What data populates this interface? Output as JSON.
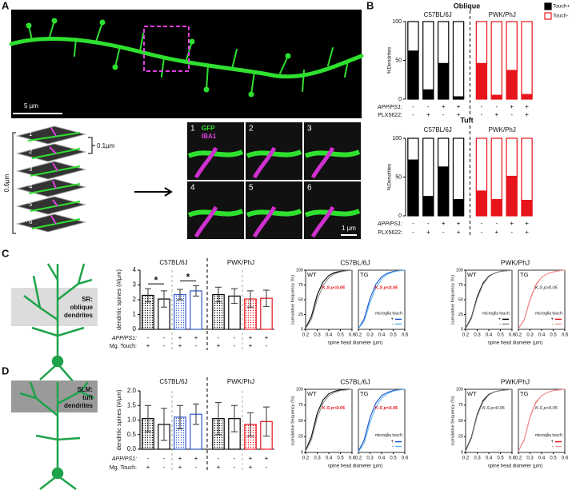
{
  "figure": {
    "panel_labels": [
      "A",
      "B",
      "C",
      "D"
    ],
    "scale_a": "5 µm",
    "stack": {
      "labels": [
        "1",
        "2",
        "3",
        "4",
        "5",
        "6"
      ],
      "step": "0.1µm",
      "depth": "0.6µm"
    },
    "tiles": {
      "labels": [
        "1",
        "2",
        "3",
        "4",
        "5",
        "6"
      ],
      "stains": [
        "GFP",
        "IBA1"
      ],
      "scale": "1 µm"
    },
    "neuron_c": [
      "SR:",
      "oblique",
      "dendrites"
    ],
    "neuron_d": [
      "SLM:",
      "tuft",
      "dendrites"
    ]
  },
  "chart_data": [
    {
      "type": "stacked_bar",
      "title": "Oblique",
      "groups": [
        "C57BL/6J",
        "PWK/PhJ"
      ],
      "group_colors": [
        "#000000",
        "#e8141b"
      ],
      "ylabel": "%Dendrites",
      "ylim": [
        0,
        100
      ],
      "yticks": [
        0,
        50,
        100
      ],
      "legend": "top-right",
      "series": [
        {
          "name": "Touch+",
          "color": "#000000",
          "values": [
            62,
            12,
            46,
            3,
            46,
            5,
            37,
            6
          ]
        },
        {
          "name": "Touch-",
          "color": "#ffffff",
          "values": [
            38,
            88,
            54,
            97,
            54,
            95,
            63,
            94
          ]
        }
      ],
      "rows": [
        {
          "label": "APP/PS1:",
          "values": [
            "-",
            "-",
            "+",
            "+",
            "-",
            "-",
            "+",
            "+"
          ]
        },
        {
          "label": "PLX5622:",
          "values": [
            "-",
            "+",
            "-",
            "+",
            "-",
            "+",
            "-",
            "+"
          ]
        }
      ]
    },
    {
      "type": "stacked_bar",
      "title": "Tuft",
      "groups": [
        "C57BL/6J",
        "PWK/PhJ"
      ],
      "group_colors": [
        "#000000",
        "#e8141b"
      ],
      "ylabel": "%Dendrites",
      "ylim": [
        0,
        100
      ],
      "yticks": [
        0,
        50,
        100
      ],
      "series": [
        {
          "color": "#000000",
          "values": [
            72,
            25,
            63,
            21,
            32,
            21,
            51,
            20
          ]
        },
        {
          "color": "#ffffff",
          "values": [
            28,
            75,
            37,
            79,
            68,
            79,
            49,
            80
          ]
        }
      ],
      "rows": [
        {
          "label": "APP/PS1:",
          "values": [
            "-",
            "-",
            "+",
            "+",
            "-",
            "-",
            "+",
            "+"
          ]
        },
        {
          "label": "PLX5622:",
          "values": [
            "-",
            "+",
            "-",
            "+",
            "-",
            "+",
            "-",
            "+"
          ]
        }
      ]
    },
    {
      "type": "bar",
      "groups": [
        "C57BL/6J",
        "PWK/PhJ"
      ],
      "ylabel": "dendritic spines (#/µm)",
      "ylim": [
        0,
        4
      ],
      "yticks": [
        0,
        1,
        2,
        3,
        4
      ],
      "values": [
        2.3,
        2.05,
        2.35,
        2.6,
        2.35,
        2.25,
        2.05,
        2.1
      ],
      "errors": [
        0.45,
        0.55,
        0.35,
        0.35,
        0.5,
        0.5,
        0.55,
        0.55
      ],
      "colors": [
        "#000000",
        "#000000",
        "#2f56c9",
        "#2f56c9",
        "#000000",
        "#000000",
        "#e8141b",
        "#e8141b"
      ],
      "dotted": [
        true,
        false,
        true,
        false,
        true,
        false,
        true,
        false
      ],
      "annotations": [
        {
          "text": "*",
          "from": 0,
          "to": 1
        },
        {
          "text": "*",
          "from": 2,
          "to": 3
        }
      ],
      "rows": [
        {
          "label": "APP/PS1:",
          "values": [
            "-",
            "-",
            "+",
            "+",
            "-",
            "-",
            "+",
            "+"
          ]
        },
        {
          "label": "Mg. Touch:",
          "values": [
            "+",
            "-",
            "+",
            "-",
            "+",
            "-",
            "+",
            "-"
          ]
        }
      ]
    },
    {
      "type": "line",
      "heading": "C57BL/6J",
      "label": "WT",
      "ylabel": "cumulative frequency (%)",
      "xlabel": "spine head diameter (µm)",
      "xlim": [
        0.2,
        0.6
      ],
      "xticks": [
        0.2,
        0.3,
        0.4,
        0.5,
        0.6
      ],
      "ylim": [
        0,
        100
      ],
      "yticks": [
        0,
        25,
        50,
        75,
        100
      ],
      "annotation": {
        "text": "K-S p<0.05",
        "color": "#e8141b"
      },
      "x": [
        0.2,
        0.25,
        0.3,
        0.35,
        0.4,
        0.45,
        0.5,
        0.55,
        0.6
      ],
      "series": [
        {
          "color": "#000000",
          "values": [
            2,
            22,
            58,
            80,
            91,
            96,
            98,
            99,
            100
          ]
        },
        {
          "color": "#8c8c8c",
          "values": [
            1,
            17,
            50,
            74,
            87,
            94,
            97,
            99,
            100
          ]
        }
      ]
    },
    {
      "type": "line",
      "label": "TG",
      "xlim": [
        0.2,
        0.6
      ],
      "xticks": [
        0.2,
        0.3,
        0.4,
        0.5,
        0.6
      ],
      "ylim": [
        0,
        100
      ],
      "annotation": {
        "text": "K-S p<0.05",
        "color": "#e8141b"
      },
      "legend_title": "microglia touch:",
      "x": [
        0.2,
        0.25,
        0.3,
        0.35,
        0.4,
        0.45,
        0.5,
        0.55,
        0.6
      ],
      "series": [
        {
          "name": "+",
          "color": "#1a4fd1",
          "values": [
            1,
            18,
            52,
            76,
            89,
            95,
            98,
            99,
            100
          ]
        },
        {
          "name": "-",
          "color": "#5fb4e8",
          "values": [
            1,
            14,
            45,
            70,
            85,
            93,
            97,
            99,
            100
          ]
        }
      ]
    },
    {
      "type": "line",
      "heading": "PWK/PhJ",
      "label": "WT",
      "ylabel": "cumulative frequency (%)",
      "xlabel": "spine head diameter (µm)",
      "xlim": [
        0.2,
        0.6
      ],
      "xticks": [
        0.2,
        0.3,
        0.4,
        0.5,
        0.6
      ],
      "ylim": [
        0,
        100
      ],
      "yticks": [
        0,
        25,
        50,
        75,
        100
      ],
      "legend_title": "microglia touch:",
      "x": [
        0.2,
        0.25,
        0.3,
        0.35,
        0.4,
        0.45,
        0.5,
        0.55,
        0.6
      ],
      "series": [
        {
          "name": "+",
          "color": "#000000",
          "values": [
            2,
            20,
            55,
            78,
            90,
            95,
            98,
            99,
            100
          ]
        },
        {
          "name": "-",
          "color": "#8c8c8c",
          "values": [
            1,
            18,
            52,
            76,
            89,
            95,
            98,
            99,
            100
          ]
        }
      ]
    },
    {
      "type": "line",
      "label": "TG",
      "xlim": [
        0.2,
        0.6
      ],
      "xticks": [
        0.2,
        0.3,
        0.4,
        0.5,
        0.6
      ],
      "ylim": [
        0,
        100
      ],
      "annotation": {
        "text": "K-S p>0.05",
        "color": "#111111"
      },
      "legend_title": "microglia touch:",
      "x": [
        0.2,
        0.25,
        0.3,
        0.35,
        0.4,
        0.45,
        0.5,
        0.55,
        0.6
      ],
      "series": [
        {
          "name": "+",
          "color": "#e8141b",
          "values": [
            1,
            16,
            50,
            75,
            88,
            94,
            97,
            99,
            100
          ]
        },
        {
          "name": "-",
          "color": "#f4a3a3",
          "values": [
            1,
            15,
            49,
            74,
            88,
            94,
            97,
            99,
            100
          ]
        }
      ]
    },
    {
      "type": "bar",
      "groups": [
        "C57BL/6J",
        "PWK/PhJ"
      ],
      "ylabel": "dendritic spines (#/µm)",
      "ylim": [
        0,
        2
      ],
      "yticks": [
        {
          "value": 0,
          "label": "0.0"
        },
        0.5,
        {
          "value": 1,
          "label": "1.0"
        },
        1.5,
        {
          "value": 2,
          "label": "2.0"
        }
      ],
      "values": [
        1.05,
        0.85,
        1.1,
        1.2,
        1.05,
        1.05,
        0.85,
        0.95
      ],
      "errors": [
        0.45,
        0.55,
        0.4,
        0.35,
        0.55,
        0.45,
        0.4,
        0.5
      ],
      "colors": [
        "#000000",
        "#000000",
        "#2f56c9",
        "#2f56c9",
        "#000000",
        "#000000",
        "#e8141b",
        "#e8141b"
      ],
      "dotted": [
        true,
        false,
        true,
        false,
        true,
        false,
        true,
        false
      ],
      "rows": [
        {
          "label": "APP/PS1:",
          "values": [
            "-",
            "-",
            "+",
            "+",
            "-",
            "-",
            "+",
            "+"
          ]
        },
        {
          "label": "Mg. Touch:",
          "values": [
            "+",
            "-",
            "+",
            "-",
            "+",
            "-",
            "+",
            "-"
          ]
        }
      ]
    },
    {
      "type": "line",
      "heading": "C57BL/6J",
      "label": "WT",
      "ylabel": "cumulative frequency (%)",
      "xlabel": "spine head diameter (µm)",
      "xlim": [
        0.2,
        0.6
      ],
      "xticks": [
        0.2,
        0.3,
        0.4,
        0.5,
        0.6
      ],
      "ylim": [
        0,
        100
      ],
      "yticks": [
        0,
        25,
        50,
        75,
        100
      ],
      "annotation": {
        "text": "K-S p<0.05",
        "color": "#e8141b"
      },
      "x": [
        0.2,
        0.25,
        0.3,
        0.35,
        0.4,
        0.45,
        0.5,
        0.55,
        0.6
      ],
      "series": [
        {
          "color": "#000000",
          "values": [
            3,
            25,
            62,
            83,
            93,
            97,
            99,
            100,
            100
          ]
        },
        {
          "color": "#8c8c8c",
          "values": [
            2,
            20,
            55,
            78,
            90,
            95,
            98,
            99,
            100
          ]
        }
      ]
    },
    {
      "type": "line",
      "label": "TG",
      "xlim": [
        0.2,
        0.6
      ],
      "xticks": [
        0.2,
        0.3,
        0.4,
        0.5,
        0.6
      ],
      "ylim": [
        0,
        100
      ],
      "annotation": {
        "text": "K-S p<0.05",
        "color": "#e8141b"
      },
      "legend_title": "microglia touch:",
      "x": [
        0.2,
        0.25,
        0.3,
        0.35,
        0.4,
        0.45,
        0.5,
        0.55,
        0.6
      ],
      "series": [
        {
          "name": "+",
          "color": "#1a4fd1",
          "values": [
            2,
            20,
            55,
            78,
            90,
            95,
            98,
            99,
            100
          ]
        },
        {
          "name": "-",
          "color": "#5fb4e8",
          "values": [
            1,
            15,
            47,
            72,
            86,
            93,
            97,
            99,
            100
          ]
        }
      ]
    },
    {
      "type": "line",
      "heading": "PWK/PhJ",
      "label": "WT",
      "ylabel": "cumulative frequency (%)",
      "xlabel": "spine head diameter (µm)",
      "xlim": [
        0.2,
        0.6
      ],
      "xticks": [
        0.2,
        0.3,
        0.4,
        0.5,
        0.6
      ],
      "ylim": [
        0,
        100
      ],
      "yticks": [
        0,
        25,
        50,
        75,
        100
      ],
      "annotation": {
        "text": "K-S p>0.05",
        "color": "#111111"
      },
      "x": [
        0.2,
        0.25,
        0.3,
        0.35,
        0.4,
        0.45,
        0.5,
        0.55,
        0.6
      ],
      "series": [
        {
          "color": "#000000",
          "values": [
            3,
            24,
            60,
            82,
            92,
            96,
            98,
            99,
            100
          ]
        },
        {
          "color": "#8c8c8c",
          "values": [
            2,
            22,
            58,
            80,
            91,
            96,
            98,
            99,
            100
          ]
        }
      ]
    },
    {
      "type": "line",
      "label": "TG",
      "xlim": [
        0.2,
        0.6
      ],
      "xticks": [
        0.2,
        0.3,
        0.4,
        0.5,
        0.6
      ],
      "ylim": [
        0,
        100
      ],
      "annotation": {
        "text": "K-S p>0.05",
        "color": "#111111"
      },
      "legend_title": "microglia touch:",
      "x": [
        0.2,
        0.25,
        0.3,
        0.35,
        0.4,
        0.45,
        0.5,
        0.55,
        0.6
      ],
      "series": [
        {
          "name": "+",
          "color": "#e8141b",
          "values": [
            2,
            20,
            56,
            79,
            90,
            95,
            98,
            99,
            100
          ]
        },
        {
          "name": "-",
          "color": "#f4a3a3",
          "values": [
            2,
            19,
            55,
            78,
            90,
            95,
            98,
            99,
            100
          ]
        }
      ]
    }
  ]
}
